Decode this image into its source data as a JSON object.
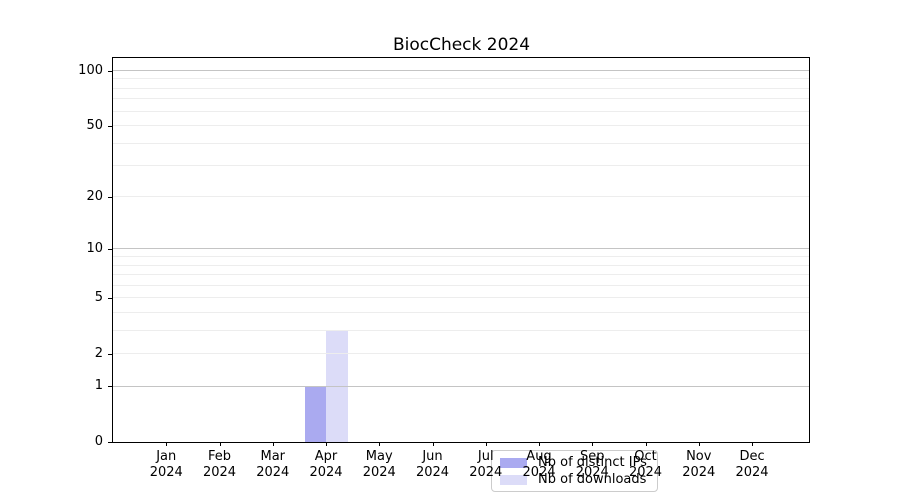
{
  "chart_data": {
    "type": "bar",
    "title": "BiocCheck 2024",
    "categories": [
      "Jan",
      "Feb",
      "Mar",
      "Apr",
      "May",
      "Jun",
      "Jul",
      "Aug",
      "Sep",
      "Oct",
      "Nov",
      "Dec"
    ],
    "category_year": "2024",
    "series": [
      {
        "name": "Nb of distinct IPs",
        "color": "#aaaaf0",
        "values": [
          0,
          0,
          0,
          1,
          0,
          0,
          0,
          0,
          0,
          0,
          0,
          0
        ]
      },
      {
        "name": "Nb of downloads",
        "color": "#dcdcf8",
        "values": [
          0,
          0,
          0,
          3,
          0,
          0,
          0,
          0,
          0,
          0,
          0,
          0
        ]
      }
    ],
    "xlabel": "",
    "ylabel": "",
    "yscale": "log1p",
    "ylim": [
      0,
      117
    ],
    "yticks": [
      0,
      1,
      2,
      5,
      10,
      20,
      50,
      100
    ],
    "gridlines_major": [
      1,
      10,
      100
    ],
    "gridlines_minor": [
      2,
      3,
      4,
      5,
      6,
      7,
      8,
      9,
      20,
      30,
      40,
      50,
      60,
      70,
      80,
      90
    ],
    "grid": "horizontal",
    "legend_position": "lower-center-inside"
  },
  "colors": {
    "background": "#ffffff",
    "spine": "#000000",
    "text": "#000000",
    "grid_major": "#c4c4c4",
    "grid_minor": "#ededed",
    "legend_border": "#cccccc"
  }
}
